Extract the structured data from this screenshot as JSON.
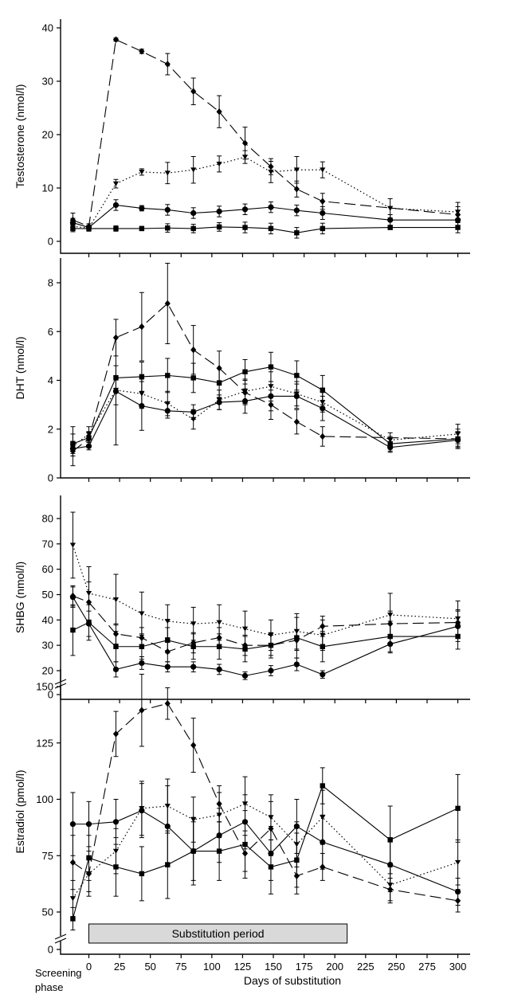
{
  "chart_data": [
    {
      "type": "line",
      "ylabel": "Testosterone (nmol/l)",
      "ylim": [
        0,
        40
      ],
      "yticks": [
        0,
        10,
        20,
        30,
        40
      ],
      "axis_break": false,
      "series": [
        {
          "name": "diamond",
          "marker": "diamond",
          "dash": "long-dash",
          "x": [
            -13,
            0,
            22,
            43,
            64,
            85,
            106,
            127,
            148,
            169,
            190,
            300
          ],
          "y": [
            4.0,
            2.8,
            37.8,
            35.6,
            33.2,
            28.1,
            24.3,
            18.4,
            14.0,
            9.8,
            7.5,
            5.0
          ],
          "err": [
            1.3,
            0.5,
            0.3,
            0.4,
            2.0,
            2.5,
            3.0,
            3.0,
            1.5,
            1.5,
            1.5,
            1.5
          ]
        },
        {
          "name": "triangle",
          "marker": "triangle",
          "dash": "dotted",
          "x": [
            -13,
            0,
            22,
            43,
            64,
            85,
            106,
            127,
            148,
            169,
            190,
            245,
            300
          ],
          "y": [
            2.8,
            2.5,
            10.8,
            13.0,
            12.8,
            13.4,
            14.5,
            15.8,
            13.0,
            13.4,
            13.4,
            6.2,
            5.5
          ],
          "err": [
            0.5,
            0.5,
            0.8,
            0.6,
            2.0,
            2.5,
            1.5,
            1.2,
            2.0,
            2.5,
            1.5,
            1.8,
            1.8
          ]
        },
        {
          "name": "circle",
          "marker": "circle",
          "dash": "solid",
          "x": [
            -13,
            0,
            22,
            43,
            64,
            85,
            106,
            127,
            148,
            169,
            190,
            245,
            300
          ],
          "y": [
            3.5,
            2.6,
            6.8,
            6.2,
            5.9,
            5.3,
            5.6,
            6.0,
            6.4,
            5.8,
            5.3,
            4.0,
            4.0
          ],
          "err": [
            0.8,
            0.4,
            1.0,
            0.5,
            1.0,
            1.0,
            1.0,
            1.0,
            1.0,
            1.0,
            1.2,
            1.0,
            1.0
          ]
        },
        {
          "name": "square",
          "marker": "square",
          "dash": "solid",
          "x": [
            -13,
            0,
            22,
            43,
            64,
            85,
            106,
            127,
            148,
            169,
            190,
            245,
            300
          ],
          "y": [
            2.4,
            2.4,
            2.4,
            2.4,
            2.5,
            2.4,
            2.7,
            2.6,
            2.4,
            1.6,
            2.4,
            2.6,
            2.6
          ],
          "err": [
            0.6,
            0.5,
            0.5,
            0.4,
            0.8,
            0.8,
            0.8,
            1.0,
            1.0,
            1.0,
            1.0,
            0.4,
            1.0
          ]
        }
      ]
    },
    {
      "type": "line",
      "ylabel": "DHT (nmol/l)",
      "ylim": [
        0,
        9
      ],
      "yticks": [
        0,
        2,
        4,
        6,
        8
      ],
      "axis_break": false,
      "series": [
        {
          "name": "diamond",
          "marker": "diamond",
          "dash": "long-dash",
          "x": [
            -13,
            0,
            22,
            43,
            64,
            85,
            106,
            127,
            148,
            169,
            190,
            300
          ],
          "y": [
            1.1,
            1.6,
            5.75,
            6.2,
            7.15,
            5.25,
            4.5,
            3.5,
            3.0,
            2.3,
            1.7,
            1.6
          ],
          "err": [
            0.2,
            0.3,
            0.75,
            1.4,
            1.65,
            1.0,
            0.7,
            0.5,
            0.6,
            0.5,
            0.4,
            0.3
          ]
        },
        {
          "name": "triangle",
          "marker": "triangle",
          "dash": "dotted",
          "x": [
            -13,
            0,
            22,
            43,
            64,
            85,
            106,
            127,
            148,
            169,
            190,
            245,
            300
          ],
          "y": [
            1.3,
            1.8,
            3.6,
            3.45,
            3.05,
            2.4,
            3.2,
            3.55,
            3.75,
            3.45,
            3.1,
            1.55,
            1.8
          ],
          "err": [
            0.8,
            0.3,
            0.6,
            0.6,
            0.5,
            0.4,
            0.4,
            0.5,
            0.6,
            0.5,
            0.4,
            0.3,
            0.4
          ]
        },
        {
          "name": "circle",
          "marker": "circle",
          "dash": "solid",
          "x": [
            -13,
            0,
            22,
            43,
            64,
            85,
            106,
            127,
            148,
            169,
            190,
            245,
            300
          ],
          "y": [
            1.2,
            1.3,
            3.55,
            2.95,
            2.75,
            2.7,
            3.1,
            3.15,
            3.35,
            3.35,
            2.85,
            1.25,
            1.55
          ],
          "err": [
            0.3,
            0.15,
            2.2,
            1.0,
            0.3,
            0.3,
            0.3,
            0.5,
            0.6,
            0.5,
            0.5,
            0.2,
            0.3
          ]
        },
        {
          "name": "square",
          "marker": "square",
          "dash": "solid",
          "x": [
            -13,
            0,
            22,
            43,
            64,
            85,
            106,
            127,
            148,
            169,
            190,
            245,
            300
          ],
          "y": [
            1.4,
            1.65,
            4.1,
            4.15,
            4.2,
            4.1,
            3.9,
            4.35,
            4.55,
            4.2,
            3.6,
            1.4,
            1.6
          ],
          "err": [
            0.4,
            0.2,
            0.5,
            0.6,
            0.7,
            0.6,
            0.6,
            0.5,
            0.6,
            0.6,
            0.6,
            0.3,
            0.4
          ]
        }
      ]
    },
    {
      "type": "line",
      "ylabel": "SHBG (nmol/l)",
      "ylim": [
        10,
        85
      ],
      "yticks": [
        0,
        20,
        30,
        40,
        50,
        60,
        70,
        80
      ],
      "axis_break": true,
      "series": [
        {
          "name": "diamond",
          "marker": "diamond",
          "dash": "long-dash",
          "x": [
            -13,
            0,
            22,
            43,
            64,
            85,
            106,
            127,
            148,
            169,
            190,
            245,
            300
          ],
          "y": [
            49.5,
            47.0,
            34.5,
            33.0,
            27.5,
            31.0,
            33.0,
            30.0,
            30.0,
            32.0,
            37.5,
            38.5,
            39.0
          ],
          "err": [
            4.0,
            8.0,
            4.0,
            4.0,
            4.0,
            4.0,
            4.0,
            4.0,
            4.0,
            4.0,
            4.0,
            5.0,
            5.0
          ]
        },
        {
          "name": "triangle",
          "marker": "triangle",
          "dash": "dotted",
          "x": [
            -13,
            0,
            22,
            43,
            64,
            85,
            106,
            127,
            148,
            169,
            190,
            245,
            300
          ],
          "y": [
            69.5,
            50.5,
            48.0,
            42.5,
            39.5,
            38.5,
            39.0,
            36.5,
            34.0,
            35.5,
            34.0,
            42.0,
            40.5
          ],
          "err": [
            13.0,
            10.5,
            10.0,
            8.5,
            6.5,
            6.5,
            7.0,
            7.0,
            6.0,
            7.0,
            6.0,
            8.5,
            7.0
          ]
        },
        {
          "name": "circle",
          "marker": "circle",
          "dash": "solid",
          "x": [
            -13,
            0,
            22,
            43,
            64,
            85,
            106,
            127,
            148,
            169,
            190,
            245,
            300
          ],
          "y": [
            49.0,
            38.5,
            20.5,
            23.0,
            21.5,
            21.5,
            20.5,
            18.0,
            20.0,
            22.5,
            18.5,
            30.5,
            37.5
          ],
          "err": [
            4.0,
            5.0,
            3.0,
            2.5,
            2.0,
            2.0,
            2.0,
            1.5,
            2.0,
            2.5,
            1.5,
            3.5,
            6.0
          ]
        },
        {
          "name": "square",
          "marker": "square",
          "dash": "solid",
          "x": [
            -13,
            0,
            22,
            43,
            64,
            85,
            106,
            127,
            148,
            169,
            190,
            245,
            300
          ],
          "y": [
            36.0,
            39.0,
            29.5,
            29.5,
            32.0,
            29.5,
            29.5,
            28.5,
            30.0,
            33.0,
            29.5,
            33.5,
            33.5
          ],
          "err": [
            10.0,
            7.0,
            6.0,
            5.0,
            5.0,
            5.0,
            5.0,
            5.0,
            5.0,
            8.0,
            6.0,
            6.0,
            5.0
          ]
        }
      ]
    },
    {
      "type": "line",
      "ylabel": "Estradiol (pmol/l)",
      "xlabel": "Days of substitution",
      "ylim": [
        35,
        160
      ],
      "yticks": [
        0,
        50,
        75,
        100,
        125,
        150
      ],
      "axis_break": true,
      "xticks": [
        0,
        25,
        50,
        75,
        100,
        125,
        150,
        175,
        200,
        225,
        250,
        275,
        300
      ],
      "xlim": [
        -23,
        310
      ],
      "screening_label_line1": "Screening",
      "screening_label_line2": "phase",
      "substitution_period": {
        "label": "Substitution period",
        "start": 0,
        "end": 210
      },
      "series": [
        {
          "name": "diamond",
          "marker": "diamond",
          "dash": "long-dash",
          "x": [
            -13,
            0,
            22,
            43,
            64,
            85,
            106,
            127,
            148,
            169,
            190,
            245,
            300
          ],
          "y": [
            72.0,
            67.0,
            129.0,
            139.5,
            142.5,
            124.0,
            98.0,
            76.0,
            87.0,
            66.0,
            70.0,
            60.0,
            55.0
          ],
          "err": [
            12.0,
            10.0,
            10.0,
            16.0,
            7.0,
            12.0,
            8.0,
            8.0,
            12.0,
            8.0,
            6.0,
            5.0,
            5.0
          ]
        },
        {
          "name": "triangle",
          "marker": "triangle",
          "dash": "dotted",
          "x": [
            -13,
            0,
            22,
            43,
            64,
            85,
            106,
            127,
            148,
            169,
            190,
            245,
            300
          ],
          "y": [
            56.0,
            67.0,
            77.0,
            96.0,
            97.0,
            91.0,
            93.0,
            98.0,
            92.0,
            80.0,
            92.0,
            62.0,
            72.0
          ],
          "err": [
            8.0,
            8.0,
            10.0,
            12.0,
            12.0,
            10.0,
            10.0,
            12.0,
            10.0,
            10.0,
            12.0,
            8.0,
            10.0
          ]
        },
        {
          "name": "circle",
          "marker": "circle",
          "dash": "solid",
          "x": [
            -13,
            0,
            22,
            43,
            64,
            85,
            106,
            127,
            148,
            169,
            190,
            245,
            300
          ],
          "y": [
            89.0,
            89.0,
            90.0,
            95.0,
            88.0,
            77.0,
            84.0,
            90.0,
            76.0,
            88.0,
            81.0,
            71.0,
            59.0
          ],
          "err": [
            14.0,
            10.0,
            10.0,
            12.0,
            18.0,
            15.0,
            12.0,
            12.0,
            12.0,
            12.0,
            12.0,
            12.0,
            6.0
          ]
        },
        {
          "name": "square",
          "marker": "square",
          "dash": "solid",
          "x": [
            -13,
            0,
            22,
            43,
            64,
            85,
            106,
            127,
            148,
            169,
            190,
            245,
            300
          ],
          "y": [
            47.0,
            74.0,
            70.0,
            67.0,
            71.0,
            77.0,
            77.0,
            80.0,
            70.0,
            73.0,
            106.0,
            82.0,
            96.0
          ],
          "err": [
            5.0,
            10.0,
            13.0,
            12.0,
            15.0,
            13.0,
            13.0,
            15.0,
            12.0,
            12.0,
            8.0,
            15.0,
            15.0
          ]
        }
      ]
    }
  ]
}
